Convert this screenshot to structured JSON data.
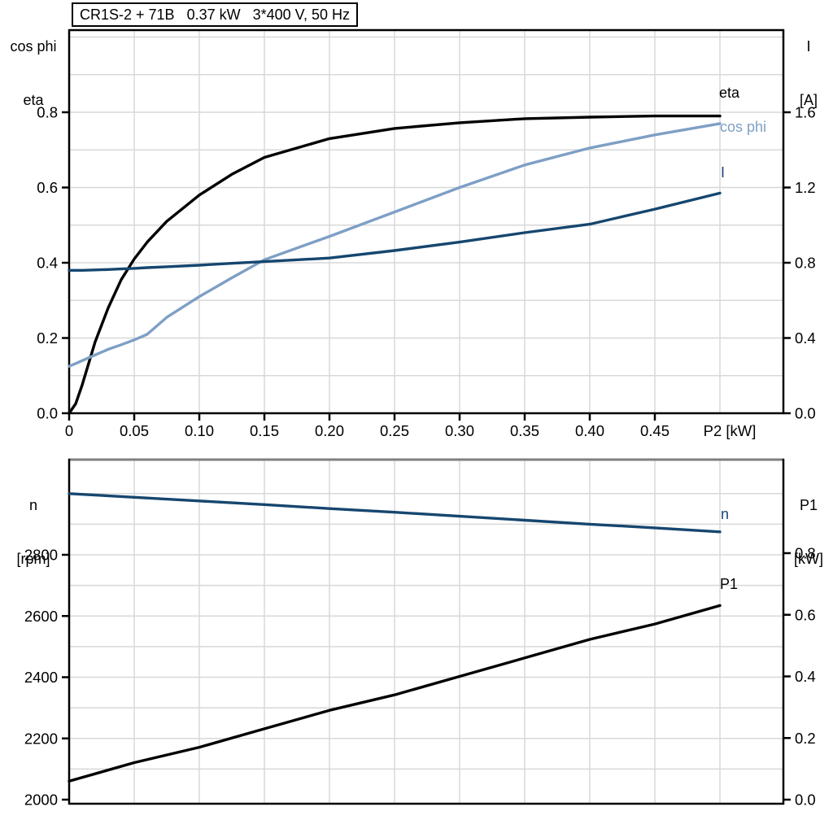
{
  "title_box": "CR1S-2 + 71B   0.37 kW   3*400 V, 50 Hz",
  "colors": {
    "eta_curve": "#000000",
    "cos_phi_curve": "#7e9fc5",
    "current_curve": "#16466f",
    "speed_curve": "#16466f",
    "p1_curve": "#000000",
    "grid": "#d8d8d8",
    "frame": "#000000",
    "bottom_frame_top": "#7f7f7f"
  },
  "top_chart": {
    "left_axis_title": [
      "cos phi",
      "eta"
    ],
    "right_axis_title": [
      "I",
      "[A]"
    ],
    "left_ticks": [
      "0.0",
      "0.2",
      "0.4",
      "0.6",
      "0.8"
    ],
    "right_ticks": [
      "0.0",
      "0.4",
      "0.8",
      "1.2",
      "1.6"
    ],
    "x_ticks": [
      "0",
      "0.05",
      "0.10",
      "0.15",
      "0.20",
      "0.25",
      "0.30",
      "0.35",
      "0.40",
      "0.45"
    ],
    "x_label": "P2 [kW]",
    "curve_labels": {
      "eta": "eta",
      "cos_phi": "cos phi",
      "current": "I"
    }
  },
  "bottom_chart": {
    "left_axis_title": [
      "n",
      "[rpm]"
    ],
    "right_axis_title": [
      "P1",
      "[kW]"
    ],
    "left_ticks": [
      "2000",
      "2200",
      "2400",
      "2600",
      "2800"
    ],
    "right_ticks": [
      "0.0",
      "0.2",
      "0.4",
      "0.6",
      "0.8"
    ],
    "curve_labels": {
      "n": "n",
      "p1": "P1"
    }
  },
  "chart_data": [
    {
      "type": "line",
      "title": "CR1S-2 + 71B 0.37 kW 3*400 V, 50 Hz",
      "xlabel": "P2 [kW]",
      "x_range": [
        0,
        0.55
      ],
      "grid": true,
      "left_axis": {
        "label": "cos phi / eta",
        "range": [
          0,
          1.02
        ],
        "major_ticks": [
          0,
          0.2,
          0.4,
          0.6,
          0.8
        ]
      },
      "right_axis": {
        "label": "I [A]",
        "range": [
          0,
          2.04
        ],
        "major_ticks": [
          0,
          0.4,
          0.8,
          1.2,
          1.6
        ]
      },
      "x": [
        0,
        0.005,
        0.01,
        0.02,
        0.03,
        0.04,
        0.05,
        0.06,
        0.075,
        0.1,
        0.125,
        0.15,
        0.2,
        0.25,
        0.3,
        0.35,
        0.4,
        0.45,
        0.5
      ],
      "series": [
        {
          "name": "eta",
          "axis": "left",
          "values": [
            0,
            0.025,
            0.075,
            0.19,
            0.28,
            0.355,
            0.41,
            0.455,
            0.51,
            0.58,
            0.635,
            0.68,
            0.73,
            0.757,
            0.772,
            0.783,
            0.787,
            0.79,
            0.79
          ]
        },
        {
          "name": "cos phi",
          "axis": "left",
          "values": [
            0.125,
            0.132,
            0.14,
            0.155,
            0.17,
            0.182,
            0.195,
            0.21,
            0.255,
            0.31,
            0.36,
            0.408,
            0.47,
            0.535,
            0.6,
            0.66,
            0.705,
            0.74,
            0.77
          ]
        },
        {
          "name": "I",
          "axis": "right",
          "unit": "A",
          "values": [
            0.76,
            0.76,
            0.76,
            0.762,
            0.764,
            0.767,
            0.77,
            0.774,
            0.779,
            0.787,
            0.797,
            0.806,
            0.825,
            0.865,
            0.91,
            0.96,
            1.005,
            1.085,
            1.17
          ]
        }
      ]
    },
    {
      "type": "line",
      "xlabel": "P2 [kW]",
      "x_range": [
        0,
        0.55
      ],
      "grid": true,
      "left_axis": {
        "label": "n [rpm]",
        "range": [
          1990,
          3110
        ],
        "major_ticks": [
          2000,
          2200,
          2400,
          2600,
          2800
        ]
      },
      "right_axis": {
        "label": "P1 [kW]",
        "range": [
          0,
          1.1
        ],
        "major_ticks": [
          0,
          0.2,
          0.4,
          0.6,
          0.8
        ]
      },
      "x": [
        0,
        0.05,
        0.1,
        0.15,
        0.2,
        0.25,
        0.3,
        0.35,
        0.4,
        0.45,
        0.5
      ],
      "series": [
        {
          "name": "n",
          "axis": "left",
          "unit": "rpm",
          "values": [
            3000,
            2988,
            2976,
            2964,
            2951,
            2939,
            2926,
            2913,
            2900,
            2888,
            2875
          ]
        },
        {
          "name": "P1",
          "axis": "right",
          "unit": "kW",
          "values": [
            0.06,
            0.12,
            0.17,
            0.23,
            0.29,
            0.34,
            0.4,
            0.46,
            0.52,
            0.57,
            0.63
          ]
        }
      ]
    }
  ]
}
